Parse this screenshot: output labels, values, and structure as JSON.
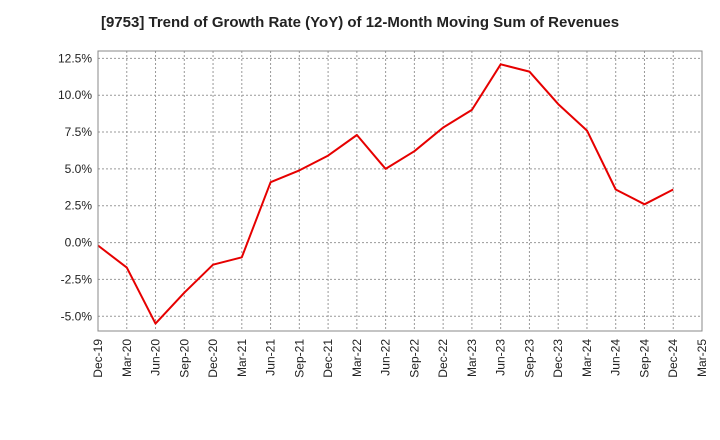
{
  "chart_data": {
    "type": "line",
    "title": "[9753]  Trend of Growth Rate (YoY) of 12-Month Moving Sum of Revenues",
    "xlabel": "",
    "ylabel": "",
    "x_ticks": [
      "Dec-19",
      "Mar-20",
      "Jun-20",
      "Sep-20",
      "Dec-20",
      "Mar-21",
      "Jun-21",
      "Sep-21",
      "Dec-21",
      "Mar-22",
      "Jun-22",
      "Sep-22",
      "Dec-22",
      "Mar-23",
      "Jun-23",
      "Sep-23",
      "Dec-23",
      "Mar-24",
      "Jun-24",
      "Sep-24",
      "Dec-24",
      "Mar-25"
    ],
    "y_ticks": [
      12.5,
      10.0,
      7.5,
      5.0,
      2.5,
      0.0,
      -2.5,
      -5.0
    ],
    "y_tick_labels": [
      "12.5%",
      "10.0%",
      "7.5%",
      "5.0%",
      "2.5%",
      "0.0%",
      "-2.5%",
      "-5.0%"
    ],
    "ylim": [
      -6.0,
      13.0
    ],
    "grid": true,
    "series": [
      {
        "color": "#e60000",
        "x": [
          "Dec-19",
          "Mar-20",
          "Jun-20",
          "Sep-20",
          "Dec-20",
          "Mar-21",
          "Jun-21",
          "Sep-21",
          "Dec-21",
          "Mar-22",
          "Jun-22",
          "Sep-22",
          "Dec-22",
          "Mar-23",
          "Jun-23",
          "Sep-23",
          "Dec-23",
          "Mar-24",
          "Jun-24",
          "Sep-24",
          "Dec-24"
        ],
        "values": [
          -0.2,
          -1.7,
          -5.5,
          -3.4,
          -1.5,
          -1.0,
          4.1,
          4.9,
          5.9,
          7.3,
          5.0,
          6.2,
          7.8,
          9.0,
          12.1,
          11.6,
          9.4,
          7.6,
          3.6,
          2.6,
          3.6
        ]
      }
    ]
  }
}
